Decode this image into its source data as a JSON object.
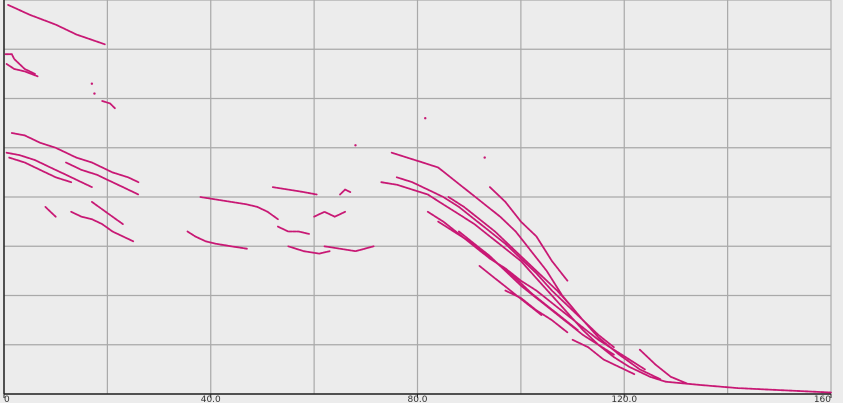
{
  "chart_data": {
    "type": "scatter",
    "title": "",
    "xlabel": "",
    "ylabel": "",
    "xlim": [
      0,
      160
    ],
    "ylim": [
      0,
      8
    ],
    "x_gridlines": [
      0,
      20,
      40,
      60,
      80,
      100,
      120,
      140,
      160
    ],
    "y_gridlines": [
      0,
      1,
      2,
      3,
      4,
      5,
      6,
      7,
      8
    ],
    "x_tick_labels": [
      "0",
      "40.0",
      "80.0",
      "120.0",
      "160"
    ],
    "x_tick_values": [
      0,
      40,
      80,
      120,
      160
    ],
    "grid": true,
    "series_color": "#c81874",
    "series": [
      {
        "points": [
          [
            0.8,
            7.9
          ],
          [
            5,
            7.7
          ],
          [
            10,
            7.5
          ],
          [
            14,
            7.3
          ],
          [
            19.5,
            7.1
          ]
        ]
      },
      {
        "points": [
          [
            0.3,
            6.9
          ],
          [
            1.5,
            6.9
          ],
          [
            2,
            6.8
          ],
          [
            4,
            6.6
          ],
          [
            6,
            6.5
          ]
        ]
      },
      {
        "points": [
          [
            0.5,
            6.7
          ],
          [
            2,
            6.6
          ],
          [
            4,
            6.55
          ],
          [
            6.5,
            6.45
          ]
        ]
      },
      {
        "points": [
          [
            19,
            5.95
          ],
          [
            20.5,
            5.9
          ],
          [
            21.5,
            5.8
          ]
        ]
      },
      {
        "points": [
          [
            1.5,
            5.3
          ],
          [
            4,
            5.25
          ],
          [
            7,
            5.1
          ],
          [
            10,
            5
          ],
          [
            14,
            4.8
          ],
          [
            17,
            4.7
          ],
          [
            21,
            4.5
          ],
          [
            24,
            4.4
          ],
          [
            26,
            4.3
          ]
        ]
      },
      {
        "points": [
          [
            0.5,
            4.9
          ],
          [
            3,
            4.85
          ],
          [
            6,
            4.75
          ],
          [
            9,
            4.6
          ],
          [
            12,
            4.45
          ],
          [
            15,
            4.3
          ],
          [
            17,
            4.2
          ]
        ]
      },
      {
        "points": [
          [
            1,
            4.8
          ],
          [
            4,
            4.7
          ],
          [
            7,
            4.55
          ],
          [
            10,
            4.4
          ],
          [
            13,
            4.3
          ]
        ]
      },
      {
        "points": [
          [
            12,
            4.7
          ],
          [
            15,
            4.55
          ],
          [
            18,
            4.45
          ],
          [
            20,
            4.35
          ],
          [
            23,
            4.2
          ],
          [
            26,
            4.05
          ]
        ]
      },
      {
        "points": [
          [
            8,
            3.8
          ],
          [
            9,
            3.7
          ],
          [
            10,
            3.6
          ]
        ]
      },
      {
        "points": [
          [
            13,
            3.7
          ],
          [
            15,
            3.6
          ],
          [
            17,
            3.55
          ],
          [
            19,
            3.45
          ],
          [
            21,
            3.3
          ],
          [
            23,
            3.2
          ],
          [
            25,
            3.1
          ]
        ]
      },
      {
        "points": [
          [
            17,
            3.9
          ],
          [
            19,
            3.75
          ],
          [
            21,
            3.6
          ],
          [
            23,
            3.45
          ]
        ]
      },
      {
        "points": [
          [
            38,
            4
          ],
          [
            41,
            3.95
          ],
          [
            44,
            3.9
          ],
          [
            47,
            3.85
          ],
          [
            49,
            3.8
          ],
          [
            51,
            3.7
          ],
          [
            53,
            3.55
          ]
        ]
      },
      {
        "points": [
          [
            35.5,
            3.3
          ],
          [
            37,
            3.2
          ],
          [
            39,
            3.1
          ],
          [
            41,
            3.05
          ],
          [
            44,
            3.0
          ],
          [
            47,
            2.95
          ]
        ]
      },
      {
        "points": [
          [
            52,
            4.2
          ],
          [
            55,
            4.15
          ],
          [
            58,
            4.1
          ],
          [
            60.5,
            4.05
          ]
        ]
      },
      {
        "points": [
          [
            53,
            3.4
          ],
          [
            55,
            3.3
          ],
          [
            57,
            3.3
          ],
          [
            59,
            3.25
          ]
        ]
      },
      {
        "points": [
          [
            55,
            3
          ],
          [
            58,
            2.9
          ],
          [
            61,
            2.85
          ],
          [
            63,
            2.9
          ]
        ]
      },
      {
        "points": [
          [
            60,
            3.6
          ],
          [
            62,
            3.7
          ],
          [
            64,
            3.6
          ],
          [
            66,
            3.7
          ]
        ]
      },
      {
        "points": [
          [
            62,
            3.0
          ],
          [
            65,
            2.95
          ],
          [
            68,
            2.9
          ],
          [
            71.5,
            3.0
          ]
        ]
      },
      {
        "points": [
          [
            67,
            4.1
          ],
          [
            66,
            4.15
          ],
          [
            65,
            4.05
          ]
        ]
      },
      {
        "points": [
          [
            75,
            4.9
          ],
          [
            78,
            4.8
          ],
          [
            81,
            4.7
          ],
          [
            84,
            4.6
          ],
          [
            87,
            4.35
          ],
          [
            90,
            4.1
          ],
          [
            93,
            3.85
          ],
          [
            96,
            3.6
          ],
          [
            99,
            3.3
          ],
          [
            102,
            2.9
          ],
          [
            105,
            2.5
          ],
          [
            108,
            2.0
          ],
          [
            112,
            1.5
          ],
          [
            115,
            1.15
          ],
          [
            119,
            0.8
          ],
          [
            123,
            0.5
          ],
          [
            127,
            0.3
          ]
        ]
      },
      {
        "points": [
          [
            73,
            4.3
          ],
          [
            76,
            4.25
          ],
          [
            79,
            4.15
          ],
          [
            82,
            4.05
          ],
          [
            85,
            3.85
          ],
          [
            88,
            3.65
          ],
          [
            91,
            3.45
          ],
          [
            94,
            3.2
          ],
          [
            97,
            2.95
          ],
          [
            100,
            2.7
          ],
          [
            103,
            2.35
          ],
          [
            106,
            2.0
          ],
          [
            109,
            1.65
          ],
          [
            112,
            1.3
          ],
          [
            115,
            1.0
          ],
          [
            118,
            0.75
          ],
          [
            121,
            0.55
          ],
          [
            125,
            0.35
          ],
          [
            128,
            0.25
          ]
        ]
      },
      {
        "points": [
          [
            76,
            4.4
          ],
          [
            79,
            4.3
          ],
          [
            82,
            4.15
          ],
          [
            85,
            4.0
          ],
          [
            88,
            3.8
          ],
          [
            91,
            3.55
          ],
          [
            94,
            3.3
          ],
          [
            97,
            3.05
          ],
          [
            100,
            2.75
          ],
          [
            103,
            2.45
          ],
          [
            106,
            2.1
          ],
          [
            109,
            1.8
          ],
          [
            112,
            1.5
          ],
          [
            115,
            1.2
          ],
          [
            118,
            0.95
          ]
        ]
      },
      {
        "points": [
          [
            82,
            3.7
          ],
          [
            85,
            3.5
          ],
          [
            88,
            3.25
          ],
          [
            91,
            3.0
          ],
          [
            94,
            2.75
          ],
          [
            97,
            2.55
          ],
          [
            100,
            2.3
          ],
          [
            103,
            2.1
          ],
          [
            106,
            1.85
          ],
          [
            109,
            1.6
          ],
          [
            112,
            1.35
          ],
          [
            115,
            1.1
          ],
          [
            118,
            0.9
          ],
          [
            121,
            0.7
          ],
          [
            124,
            0.5
          ]
        ]
      },
      {
        "points": [
          [
            84,
            3.5
          ],
          [
            87,
            3.3
          ],
          [
            90,
            3.1
          ],
          [
            93,
            2.85
          ],
          [
            96,
            2.6
          ],
          [
            99,
            2.35
          ],
          [
            102,
            2.05
          ],
          [
            105,
            1.8
          ],
          [
            108,
            1.55
          ],
          [
            111,
            1.3
          ]
        ]
      },
      {
        "points": [
          [
            86,
            4.0
          ],
          [
            89,
            3.8
          ],
          [
            92,
            3.55
          ],
          [
            95,
            3.3
          ],
          [
            98,
            3.0
          ],
          [
            101,
            2.7
          ],
          [
            104,
            2.4
          ],
          [
            107,
            2.1
          ],
          [
            110,
            1.75
          ]
        ]
      },
      {
        "points": [
          [
            88,
            3.3
          ],
          [
            91,
            3.05
          ],
          [
            94,
            2.8
          ],
          [
            97,
            2.5
          ],
          [
            100,
            2.2
          ],
          [
            103,
            1.95
          ],
          [
            106,
            1.7
          ],
          [
            109,
            1.45
          ],
          [
            112,
            1.2
          ],
          [
            115,
            1.0
          ],
          [
            118,
            0.8
          ]
        ]
      },
      {
        "points": [
          [
            92,
            2.6
          ],
          [
            95,
            2.35
          ],
          [
            98,
            2.1
          ],
          [
            101,
            1.85
          ],
          [
            104,
            1.6
          ]
        ]
      },
      {
        "points": [
          [
            94,
            4.2
          ],
          [
            97,
            3.9
          ],
          [
            100,
            3.5
          ],
          [
            103,
            3.2
          ],
          [
            106,
            2.7
          ],
          [
            109,
            2.3
          ]
        ]
      },
      {
        "points": [
          [
            97,
            2.1
          ],
          [
            100,
            1.95
          ],
          [
            103,
            1.7
          ],
          [
            106,
            1.5
          ],
          [
            109,
            1.25
          ]
        ]
      },
      {
        "points": [
          [
            110,
            1.1
          ],
          [
            113,
            0.95
          ],
          [
            116,
            0.7
          ],
          [
            119,
            0.55
          ],
          [
            122,
            0.4
          ]
        ]
      },
      {
        "points": [
          [
            123,
            0.9
          ],
          [
            126,
            0.6
          ],
          [
            129,
            0.35
          ],
          [
            132,
            0.22
          ]
        ]
      },
      {
        "points": [
          [
            128,
            0.25
          ],
          [
            135,
            0.18
          ],
          [
            142,
            0.12
          ],
          [
            150,
            0.08
          ],
          [
            160,
            0.03
          ]
        ]
      }
    ],
    "isolated_points": [
      [
        17.5,
        6.1
      ],
      [
        81.5,
        5.6
      ],
      [
        68,
        5.05
      ],
      [
        93,
        4.8
      ],
      [
        17,
        6.3
      ]
    ]
  }
}
